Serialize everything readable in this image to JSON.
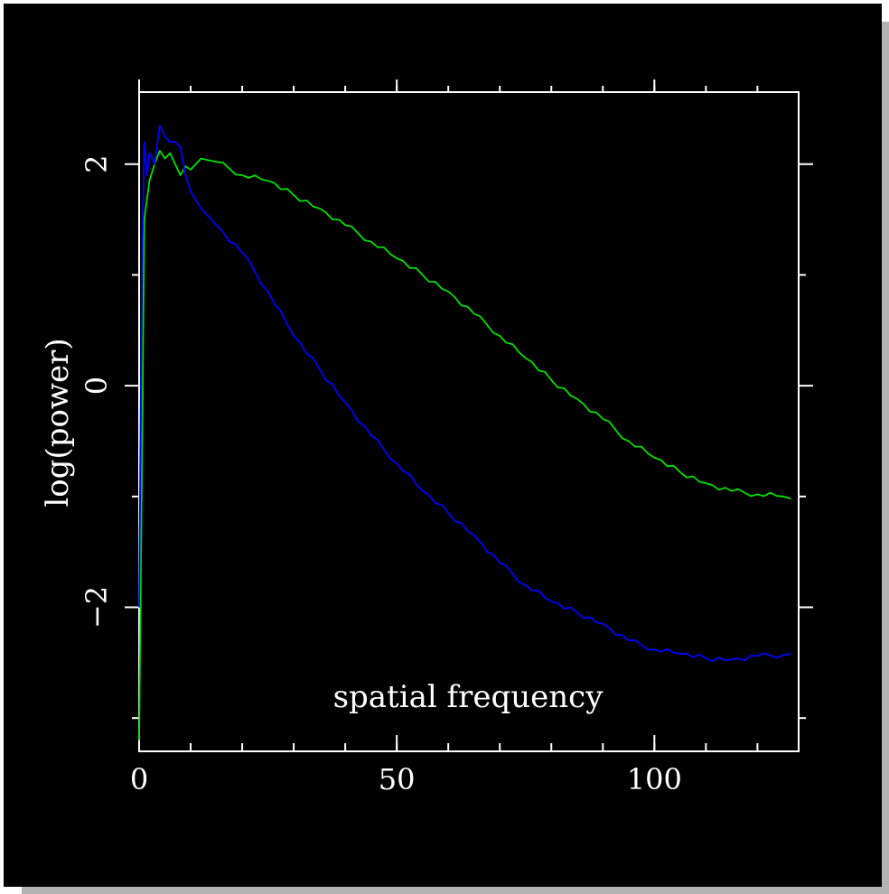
{
  "chart_data": {
    "type": "line",
    "title": "",
    "xlabel": "spatial frequency",
    "ylabel": "log(power)",
    "xlim": [
      0,
      128
    ],
    "ylim": [
      -3.3,
      2.65
    ],
    "xticks": [
      0,
      50,
      100
    ],
    "xtick_labels": [
      "0",
      "50",
      "100"
    ],
    "yticks": [
      -2,
      0,
      2
    ],
    "ytick_labels": [
      "−2",
      "0",
      "2"
    ],
    "grid": false,
    "legend": "none",
    "colors": {
      "background": "#000000",
      "axes": "#ffffff",
      "series_green": "#00e000",
      "series_blue": "#0000ff"
    },
    "series": [
      {
        "color": "#00e000",
        "x": [
          0,
          0.5,
          1,
          2,
          3,
          4,
          5,
          6,
          7,
          8,
          9,
          10,
          12,
          15,
          20,
          25,
          30,
          35,
          40,
          45,
          50,
          55,
          60,
          65,
          70,
          75,
          80,
          85,
          90,
          95,
          100,
          105,
          110,
          115,
          120,
          125,
          126.5
        ],
        "values": [
          -3.2,
          -0.9,
          1.5,
          1.85,
          2.0,
          2.12,
          2.05,
          2.1,
          2.0,
          1.9,
          1.98,
          1.95,
          2.05,
          2.02,
          1.9,
          1.85,
          1.72,
          1.6,
          1.45,
          1.3,
          1.15,
          1.0,
          0.85,
          0.65,
          0.45,
          0.25,
          0.05,
          -0.12,
          -0.3,
          -0.5,
          -0.65,
          -0.78,
          -0.88,
          -0.95,
          -0.98,
          -1.0,
          -1.02
        ]
      },
      {
        "color": "#0000ff",
        "x": [
          0,
          0.5,
          1,
          1.5,
          2,
          3,
          4,
          5,
          6,
          7,
          8,
          9,
          10,
          12,
          15,
          20,
          25,
          30,
          35,
          40,
          45,
          50,
          55,
          60,
          65,
          70,
          75,
          80,
          85,
          90,
          95,
          100,
          105,
          110,
          115,
          120,
          125,
          126.5
        ],
        "values": [
          -2.0,
          1.0,
          2.2,
          1.9,
          2.1,
          2.0,
          2.35,
          2.25,
          2.2,
          2.2,
          2.15,
          1.9,
          1.75,
          1.6,
          1.45,
          1.2,
          0.85,
          0.45,
          0.15,
          -0.15,
          -0.45,
          -0.7,
          -0.95,
          -1.15,
          -1.35,
          -1.6,
          -1.8,
          -1.95,
          -2.05,
          -2.15,
          -2.3,
          -2.38,
          -2.42,
          -2.46,
          -2.47,
          -2.44,
          -2.43,
          -2.42
        ]
      }
    ]
  }
}
